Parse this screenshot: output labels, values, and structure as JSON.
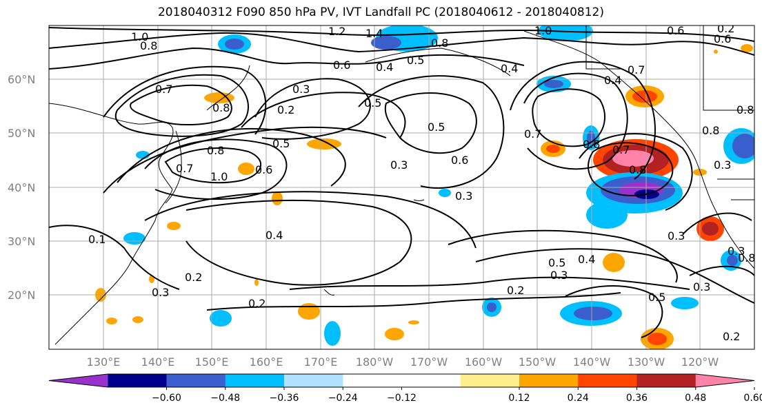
{
  "title": "2018040312 F090 850 hPa PV, IVT Landfall PC (2018040612 - 2018040812)",
  "lat_labels": [
    "60°N",
    "50°N",
    "40°N",
    "30°N",
    "20°N"
  ],
  "lon_labels": [
    "130°E",
    "140°E",
    "150°E",
    "160°E",
    "170°E",
    "180°W",
    "170°W",
    "160°W",
    "150°W",
    "140°W",
    "130°W",
    "120°W"
  ],
  "colorbar": {
    "colors": [
      "#9932CC",
      "#00008B",
      "#3A5FCD",
      "#00BFFF",
      "#B0E2FF",
      "#FFFFFF",
      "#FFFFFF",
      "#FFEC8B",
      "#FFA500",
      "#FF4500",
      "#B22222",
      "#FF82AB"
    ],
    "tick_labels": [
      "-0.60",
      "-0.48",
      "-0.36",
      "-0.24",
      "-0.12",
      "0.12",
      "0.24",
      "0.36",
      "0.48",
      "0.60"
    ]
  },
  "contour_labels": [
    "1.0",
    "0.8",
    "1.2",
    "1.4",
    "0.8",
    "1.0",
    "0.6",
    "0.2",
    "0.6",
    "0.6",
    "0.4",
    "0.5",
    "0.4",
    "0.7",
    "0.7",
    "0.4",
    "0.3",
    "0.8",
    "0.2",
    "0.5",
    "0.5",
    "0.8",
    "0.8",
    "0.7",
    "0.5",
    "0.8",
    "1.0",
    "0.6",
    "0.3",
    "0.6",
    "0.7",
    "0.8",
    "0.3",
    "0.3",
    "0.3",
    "0.4",
    "0.1",
    "0.3",
    "0.2",
    "0.3",
    "0.2",
    "0.5",
    "0.4",
    "0.3",
    "0.2",
    "0.5",
    "0.3",
    "0.2",
    "0.8",
    "0.7",
    "0.8"
  ]
}
